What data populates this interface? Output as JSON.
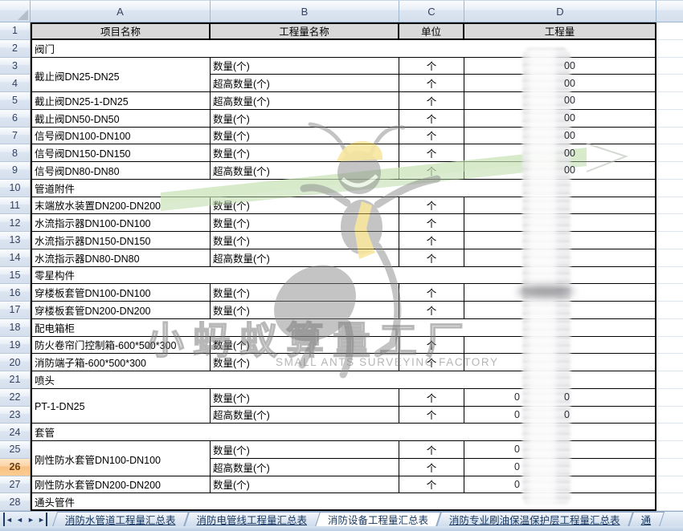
{
  "columns": [
    "A",
    "B",
    "C",
    "D"
  ],
  "rows": [
    {
      "num": 1,
      "kind": "header",
      "a": "项目名称",
      "b": "工程量名称",
      "c": "单位",
      "d": "工程量"
    },
    {
      "num": 2,
      "kind": "category",
      "a": "阀门"
    },
    {
      "num": 3,
      "kind": "data",
      "a": "截止阀DN25-DN25",
      "merge": "start",
      "b": "数量(个)",
      "c": "个",
      "d_suffix": "00"
    },
    {
      "num": 4,
      "kind": "data",
      "merge": "cont",
      "b": "超高数量(个)",
      "c": "个",
      "d_suffix": "00"
    },
    {
      "num": 5,
      "kind": "data",
      "a": "截止阀DN25-1-DN25",
      "b": "超高数量(个)",
      "c": "个",
      "d_suffix": "00"
    },
    {
      "num": 6,
      "kind": "data",
      "a": "截止阀DN50-DN50",
      "b": "数量(个)",
      "c": "个",
      "d_suffix": "00"
    },
    {
      "num": 7,
      "kind": "data",
      "a": "信号阀DN100-DN100",
      "b": "数量(个)",
      "c": "个",
      "d_suffix": "00"
    },
    {
      "num": 8,
      "kind": "data",
      "a": "信号阀DN150-DN150",
      "b": "数量(个)",
      "c": "个",
      "d_suffix": "00"
    },
    {
      "num": 9,
      "kind": "data",
      "a": "信号阀DN80-DN80",
      "b": "超高数量(个)",
      "c": "个",
      "d_suffix": "00"
    },
    {
      "num": 10,
      "kind": "category",
      "a": "管道附件"
    },
    {
      "num": 11,
      "kind": "data",
      "a": "末端放水装置DN200-DN200",
      "b": "数量(个)",
      "c": "个"
    },
    {
      "num": 12,
      "kind": "data",
      "a": "水流指示器DN100-DN100",
      "b": "数量(个)",
      "c": "个"
    },
    {
      "num": 13,
      "kind": "data",
      "a": "水流指示器DN150-DN150",
      "b": "数量(个)",
      "c": "个"
    },
    {
      "num": 14,
      "kind": "data",
      "a": "水流指示器DN80-DN80",
      "b": "超高数量(个)",
      "c": "个"
    },
    {
      "num": 15,
      "kind": "category",
      "a": "零星构件"
    },
    {
      "num": 16,
      "kind": "data",
      "a": "穿楼板套管DN100-DN100",
      "b": "数量(个)",
      "c": "个",
      "dark": true
    },
    {
      "num": 17,
      "kind": "data",
      "a": "穿楼板套管DN200-DN200",
      "b": "数量(个)",
      "c": "个"
    },
    {
      "num": 18,
      "kind": "category",
      "a": "配电箱柜"
    },
    {
      "num": 19,
      "kind": "data",
      "a": "防火卷帘门控制箱-600*500*300",
      "b": "数量(个)",
      "c": "个"
    },
    {
      "num": 20,
      "kind": "data",
      "a": "消防端子箱-600*500*300",
      "b": "数量(个)",
      "c": "个"
    },
    {
      "num": 21,
      "kind": "category",
      "a": "喷头"
    },
    {
      "num": 22,
      "kind": "data",
      "a": "PT-1-DN25",
      "merge": "start",
      "b": "数量(个)",
      "c": "个",
      "d_prefix": "0",
      "d_suffix": "0"
    },
    {
      "num": 23,
      "kind": "data",
      "merge": "cont",
      "b": "超高数量(个)",
      "c": "个",
      "d_prefix": "0",
      "d_suffix": "0"
    },
    {
      "num": 24,
      "kind": "category",
      "a": "套管"
    },
    {
      "num": 25,
      "kind": "data",
      "a": "刚性防水套管DN100-DN100",
      "merge": "start",
      "b": "数量(个)",
      "c": "个",
      "d_prefix": "0"
    },
    {
      "num": 26,
      "kind": "data",
      "merge": "cont",
      "b": "超高数量(个)",
      "c": "个",
      "d_prefix": "0",
      "selected": true
    },
    {
      "num": 27,
      "kind": "data",
      "a": "刚性防水套管DN200-DN200",
      "b": "数量(个)",
      "c": "个",
      "d_prefix": "0"
    },
    {
      "num": 28,
      "kind": "category",
      "a": "通头管件"
    }
  ],
  "selected_row": 26,
  "tabs": [
    {
      "label": "消防水管道工程量汇总表",
      "active": false
    },
    {
      "label": "消防电管线工程量汇总表",
      "active": false
    },
    {
      "label": "消防设备工程量汇总表",
      "active": true
    },
    {
      "label": "消防专业刷油保温保护层工程量汇总表",
      "active": false
    },
    {
      "label": "通",
      "active": false,
      "clipped": true
    }
  ],
  "nav_buttons": [
    {
      "id": "tab-first",
      "glyph": "◄",
      "bar": "l"
    },
    {
      "id": "tab-prev",
      "glyph": "◄",
      "bar": ""
    },
    {
      "id": "tab-next",
      "glyph": "►",
      "bar": ""
    },
    {
      "id": "tab-last",
      "glyph": "►",
      "bar": "r"
    }
  ],
  "watermark": {
    "cn": "小蚂蚁算量工厂",
    "en": "SMALL ANTS SURVEYING FACTORY"
  },
  "colors": {
    "selected_row_header": "#FBCB90",
    "table_header_fill": "#D9D9D9",
    "grid_border": "#000000",
    "chrome_border": "#9EB6CE",
    "watermark_yellow": "#F3CF3F",
    "watermark_green": "#C7E3B5"
  }
}
